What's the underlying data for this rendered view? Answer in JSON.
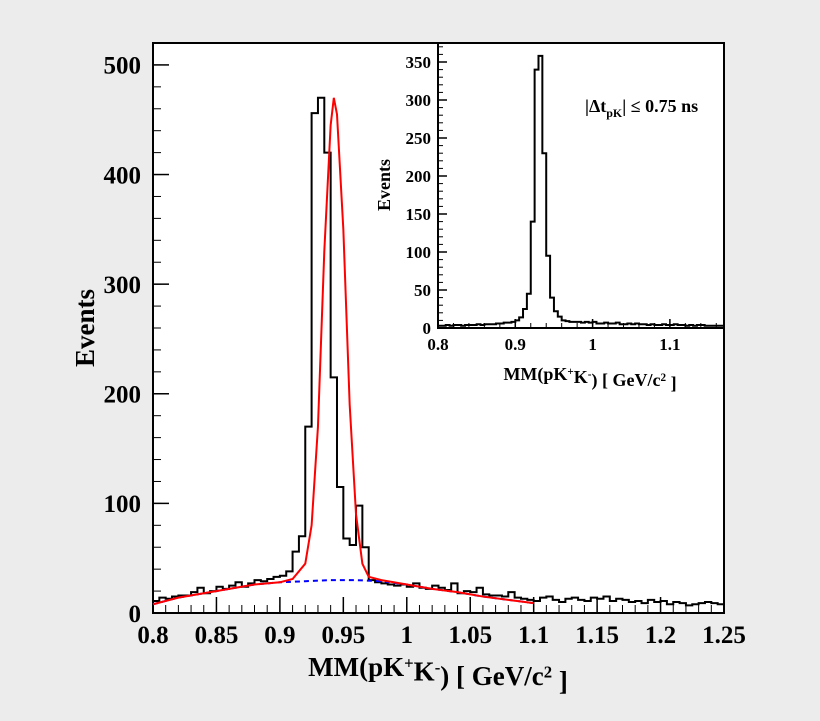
{
  "chart_data": [
    {
      "type": "histogram",
      "panel": "main",
      "xlabel": "MM(pK⁺K⁻) [ GeV/c² ]",
      "ylabel": "Events",
      "xlim": [
        0.8,
        1.25
      ],
      "ylim": [
        0,
        520
      ],
      "xticks": [
        0.8,
        0.85,
        0.9,
        0.95,
        1.0,
        1.05,
        1.1,
        1.15,
        1.2,
        1.25
      ],
      "xtick_labels": [
        "0.8",
        "0.85",
        "0.9",
        "0.95",
        "1",
        "1.05",
        "1.1",
        "1.15",
        "1.2",
        "1.25"
      ],
      "yticks": [
        0,
        100,
        200,
        300,
        400,
        500
      ],
      "ytick_labels": [
        "0",
        "100",
        "200",
        "300",
        "400",
        "500"
      ],
      "bin_start": 0.8,
      "bin_width": 0.005,
      "counts": [
        11,
        14,
        13,
        15,
        16,
        16,
        19,
        23,
        18,
        20,
        24,
        22,
        25,
        28,
        24,
        27,
        30,
        29,
        31,
        33,
        34,
        38,
        56,
        70,
        170,
        456,
        470,
        420,
        215,
        115,
        68,
        62,
        98,
        60,
        30,
        28,
        27,
        26,
        25,
        26,
        24,
        27,
        23,
        22,
        25,
        23,
        21,
        27,
        18,
        20,
        19,
        23,
        17,
        16,
        16,
        15,
        19,
        14,
        13,
        12,
        11,
        14,
        15,
        12,
        10,
        13,
        14,
        12,
        11,
        14,
        13,
        15,
        11,
        13,
        12,
        10,
        11,
        9,
        12,
        10,
        11,
        8,
        10,
        9,
        7,
        8,
        9,
        10,
        9,
        8
      ],
      "fit_total": {
        "color": "#ff0000",
        "points": [
          [
            0.8,
            8
          ],
          [
            0.82,
            14
          ],
          [
            0.84,
            18
          ],
          [
            0.86,
            22
          ],
          [
            0.88,
            26
          ],
          [
            0.9,
            28
          ],
          [
            0.91,
            31
          ],
          [
            0.92,
            45
          ],
          [
            0.925,
            80
          ],
          [
            0.93,
            170
          ],
          [
            0.935,
            330
          ],
          [
            0.94,
            445
          ],
          [
            0.9425,
            470
          ],
          [
            0.945,
            455
          ],
          [
            0.95,
            350
          ],
          [
            0.955,
            190
          ],
          [
            0.96,
            90
          ],
          [
            0.965,
            45
          ],
          [
            0.97,
            33
          ],
          [
            0.98,
            30
          ],
          [
            1.0,
            26
          ],
          [
            1.02,
            22
          ],
          [
            1.04,
            19
          ],
          [
            1.06,
            15
          ],
          [
            1.08,
            12
          ],
          [
            1.1,
            9
          ]
        ]
      },
      "fit_background": {
        "color": "#0000ff",
        "style": "dashed",
        "points": [
          [
            0.8,
            8
          ],
          [
            0.82,
            14
          ],
          [
            0.84,
            18
          ],
          [
            0.86,
            22
          ],
          [
            0.88,
            26
          ],
          [
            0.9,
            28
          ],
          [
            0.92,
            29
          ],
          [
            0.94,
            30
          ],
          [
            0.96,
            30
          ],
          [
            0.98,
            29
          ],
          [
            1.0,
            26
          ],
          [
            1.02,
            22
          ],
          [
            1.04,
            19
          ],
          [
            1.06,
            15
          ],
          [
            1.08,
            12
          ],
          [
            1.1,
            9
          ]
        ]
      }
    },
    {
      "type": "histogram",
      "panel": "inset",
      "xlabel": "MM(pK⁺K⁻) [ GeV/c² ]",
      "ylabel": "Events",
      "annotation": "|Δtₚₖ| ≤ 0.75 ns",
      "xlim": [
        0.8,
        1.17
      ],
      "ylim": [
        0,
        375
      ],
      "xticks": [
        0.8,
        0.9,
        1.0,
        1.1
      ],
      "xtick_labels": [
        "0.8",
        "0.9",
        "1",
        "1.1"
      ],
      "yticks": [
        0,
        50,
        100,
        150,
        200,
        250,
        300,
        350
      ],
      "ytick_labels": [
        "0",
        "50",
        "100",
        "150",
        "200",
        "250",
        "300",
        "350"
      ],
      "bin_start": 0.8,
      "bin_width": 0.005,
      "counts": [
        3,
        3,
        4,
        3,
        4,
        4,
        3,
        4,
        4,
        4,
        5,
        4,
        5,
        5,
        5,
        6,
        6,
        7,
        7,
        8,
        10,
        14,
        25,
        45,
        140,
        340,
        358,
        230,
        95,
        40,
        22,
        15,
        10,
        9,
        8,
        8,
        8,
        7,
        8,
        7,
        8,
        6,
        6,
        7,
        6,
        6,
        7,
        5,
        5,
        6,
        5,
        6,
        5,
        5,
        4,
        5,
        4,
        4,
        5,
        4,
        4,
        5,
        4,
        4,
        3,
        4,
        3,
        4,
        4,
        3,
        3,
        3,
        3,
        3
      ]
    }
  ]
}
